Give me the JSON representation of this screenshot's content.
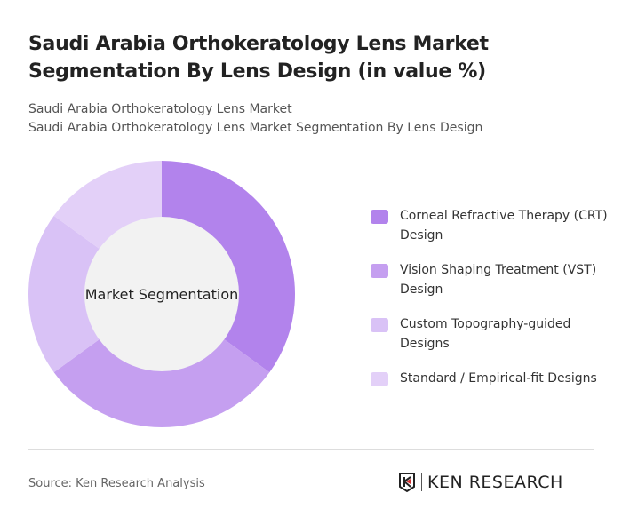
{
  "title": "Saudi Arabia Orthokeratology Lens Market Segmentation By Lens Design (in value %)",
  "subtitle1": "Saudi Arabia Orthokeratology Lens Market",
  "subtitle2": "Saudi Arabia Orthokeratology Lens Market Segmentation By Lens Design",
  "source": "Source: Ken Research Analysis",
  "logo_text": "KEN RESEARCH",
  "chart_data": {
    "type": "pie",
    "variant": "donut",
    "center_label": "Market Segmentation",
    "categories": [
      "Corneal Refractive Therapy (CRT) Design",
      "Vision Shaping Treatment (VST) Design",
      "Custom Topography-guided Designs",
      "Standard / Empirical-fit Designs"
    ],
    "values": [
      35,
      30,
      20,
      15
    ],
    "colors": [
      "#b283ec",
      "#c59ff0",
      "#d9c2f6",
      "#e3d0f8"
    ],
    "legend_position": "right"
  }
}
